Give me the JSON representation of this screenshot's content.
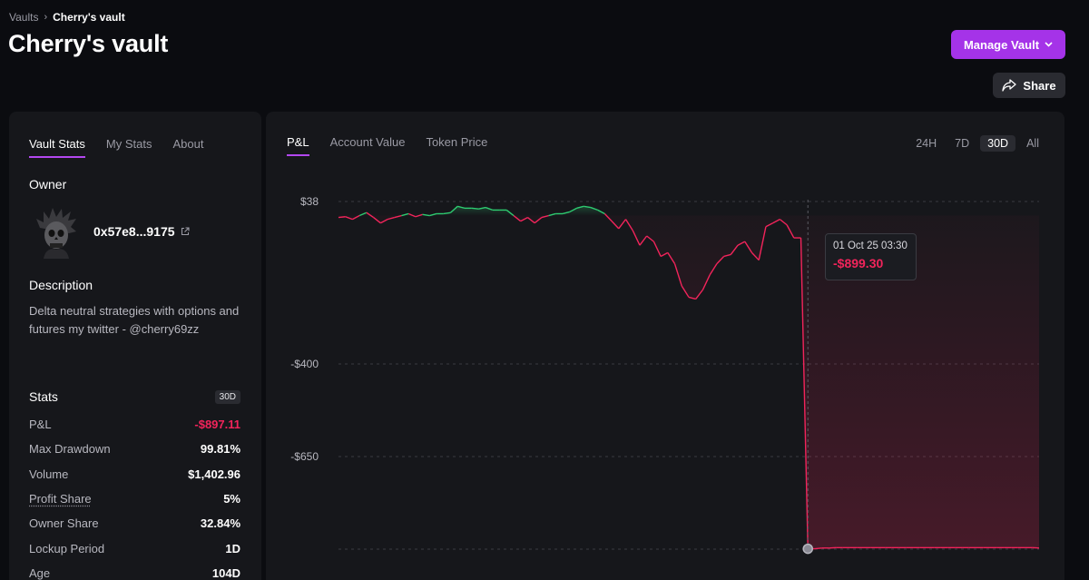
{
  "breadcrumb": {
    "root": "Vaults",
    "separator": "›",
    "current": "Cherry's vault"
  },
  "title": "Cherry's vault",
  "actions": {
    "manage_label": "Manage Vault",
    "share_label": "Share"
  },
  "stats_tabs": [
    {
      "label": "Vault Stats",
      "active": true
    },
    {
      "label": "My Stats",
      "active": false
    },
    {
      "label": "About",
      "active": false
    }
  ],
  "owner": {
    "label": "Owner",
    "address": "0x57e8...9175",
    "avatar_icon": "skull-avatar-icon"
  },
  "description": {
    "label": "Description",
    "text": "Delta neutral strategies with options and futures my twitter - @cherry69zz"
  },
  "stats": {
    "label": "Stats",
    "period": "30D",
    "rows": [
      {
        "key": "P&L",
        "value": "-$897.11"
      },
      {
        "key": "Max Drawdown",
        "value": "99.81%"
      },
      {
        "key": "Volume",
        "value": "$1,402.96"
      },
      {
        "key": "Profit Share",
        "value": "5%"
      },
      {
        "key": "Owner Share",
        "value": "32.84%"
      },
      {
        "key": "Lockup Period",
        "value": "1D"
      },
      {
        "key": "Age",
        "value": "104D"
      }
    ]
  },
  "chart_tabs": [
    {
      "label": "P&L",
      "active": true
    },
    {
      "label": "Account Value",
      "active": false
    },
    {
      "label": "Token Price",
      "active": false
    }
  ],
  "ranges": [
    {
      "label": "24H",
      "active": false
    },
    {
      "label": "7D",
      "active": false
    },
    {
      "label": "30D",
      "active": true
    },
    {
      "label": "All",
      "active": false
    }
  ],
  "tooltip": {
    "time": "01 Oct 25 03:30",
    "value": "-$899.30"
  },
  "colors": {
    "accent": "#a533e8",
    "positive": "#2ecc71",
    "negative": "#f2245b"
  },
  "chart_data": {
    "type": "line",
    "title": "",
    "xlabel": "",
    "ylabel": "",
    "y_ticks": [
      "$38",
      "-$400",
      "-$650"
    ],
    "y_tick_values": [
      38,
      -400,
      -650
    ],
    "ylim": [
      -905,
      38
    ],
    "grid": true,
    "series": [
      {
        "values": [
          -5,
          -3,
          -10,
          0,
          8,
          -5,
          -20,
          -10,
          -5,
          0,
          5,
          -3,
          3,
          0,
          5,
          5,
          8,
          25,
          20,
          20,
          18,
          22,
          15,
          15,
          15,
          0,
          -15,
          -5,
          -20,
          -5,
          0,
          5,
          5,
          10,
          20,
          25,
          22,
          15,
          5,
          -15,
          -35,
          -10,
          -40,
          -80,
          -55,
          -70,
          -110,
          -100,
          -130,
          -190,
          -220,
          -225,
          -200,
          -160,
          -130,
          -110,
          -105,
          -80,
          -70,
          -100,
          -120,
          -30,
          -20,
          -10,
          -25,
          -60,
          -60,
          -899,
          -899,
          -897,
          -897,
          -896,
          -896,
          -896,
          -896,
          -896,
          -896,
          -896,
          -896,
          -896,
          -896,
          -896,
          -896,
          -896,
          -896,
          -896,
          -896,
          -896,
          -896,
          -896,
          -896,
          -896,
          -896,
          -896,
          -896,
          -896,
          -896,
          -896,
          -896,
          -896,
          -897
        ]
      }
    ]
  }
}
